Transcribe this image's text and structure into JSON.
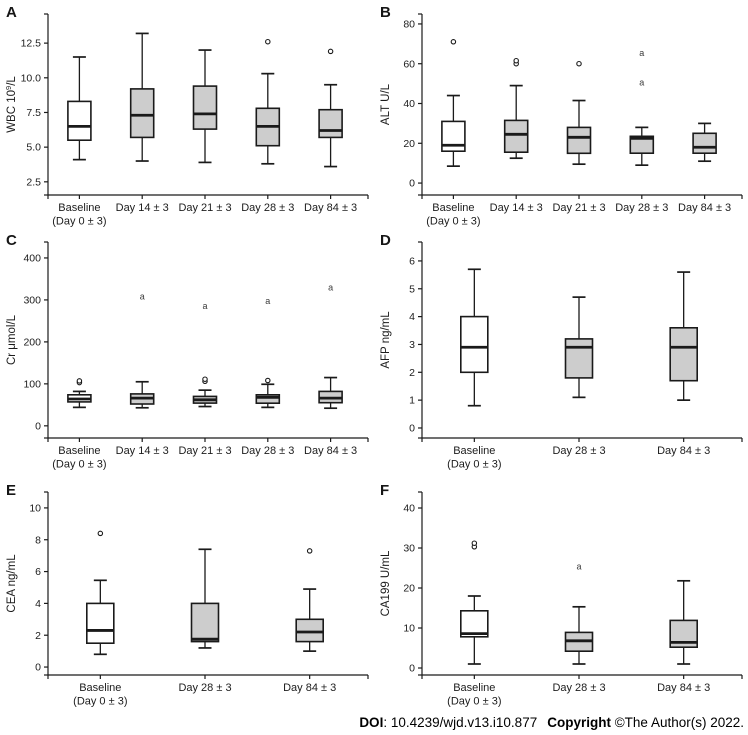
{
  "colors": {
    "line": "#1a1a1a",
    "text": "#1c1c1c",
    "box_fill_baseline": "#ffffff",
    "box_fill_followup": "#cdcdcd",
    "outlier_letter": "#3a3a3a",
    "background": "#ffffff"
  },
  "footer": {
    "doi_label": "DOI",
    "doi_separator": ": ",
    "doi_value": "10.4239/wjd.v13.i10.877",
    "copyright_label": "Copyright",
    "copyright_separator": " ",
    "copyright_value": "©The Author(s) 2022."
  },
  "chart_data": [
    {
      "panel": "A",
      "type": "box",
      "ylabel": "WBC 10⁹/L",
      "ylim": [
        1.55,
        14.6
      ],
      "yticks": [
        {
          "v": 2.5,
          "label": "2.5"
        },
        {
          "v": 5.0,
          "label": "5.0"
        },
        {
          "v": 7.5,
          "label": "7.5"
        },
        {
          "v": 10.0,
          "label": "10.0"
        },
        {
          "v": 12.5,
          "label": "12.5"
        }
      ],
      "categories": [
        [
          "Baseline",
          "(Day 0 ± 3)"
        ],
        [
          "Day 14 ± 3"
        ],
        [
          "Day 21 ± 3"
        ],
        [
          "Day 28 ± 3"
        ],
        [
          "Day 84 ± 3"
        ]
      ],
      "boxes": [
        {
          "whisker_low": 4.1,
          "q1": 5.5,
          "median": 6.5,
          "q3": 8.3,
          "whisker_high": 11.5,
          "fill": "white",
          "outliers": []
        },
        {
          "whisker_low": 4.0,
          "q1": 5.7,
          "median": 7.3,
          "q3": 9.2,
          "whisker_high": 13.2,
          "fill": "gray",
          "outliers": []
        },
        {
          "whisker_low": 3.9,
          "q1": 6.3,
          "median": 7.4,
          "q3": 9.4,
          "whisker_high": 12.0,
          "fill": "gray",
          "outliers": []
        },
        {
          "whisker_low": 3.8,
          "q1": 5.1,
          "median": 6.5,
          "q3": 7.8,
          "whisker_high": 10.3,
          "fill": "gray",
          "outliers": [
            {
              "value": 12.6,
              "marker": "circle"
            }
          ]
        },
        {
          "whisker_low": 3.6,
          "q1": 5.7,
          "median": 6.2,
          "q3": 7.7,
          "whisker_high": 9.5,
          "fill": "gray",
          "outliers": [
            {
              "value": 11.9,
              "marker": "circle"
            }
          ]
        }
      ]
    },
    {
      "panel": "B",
      "type": "box",
      "ylabel": "ALT U/L",
      "ylim": [
        -6,
        85
      ],
      "yticks": [
        {
          "v": 0,
          "label": "0"
        },
        {
          "v": 20,
          "label": "20"
        },
        {
          "v": 40,
          "label": "40"
        },
        {
          "v": 60,
          "label": "60"
        },
        {
          "v": 80,
          "label": "80"
        }
      ],
      "categories": [
        [
          "Baseline",
          "(Day 0 ± 3)"
        ],
        [
          "Day 14 ± 3"
        ],
        [
          "Day 21 ± 3"
        ],
        [
          "Day 28 ± 3"
        ],
        [
          "Day 84 ± 3"
        ]
      ],
      "boxes": [
        {
          "whisker_low": 8.5,
          "q1": 16,
          "median": 19,
          "q3": 31,
          "whisker_high": 44,
          "fill": "white",
          "outliers": [
            {
              "value": 71,
              "marker": "circle"
            }
          ]
        },
        {
          "whisker_low": 12.5,
          "q1": 15.5,
          "median": 24.5,
          "q3": 31.5,
          "whisker_high": 49,
          "fill": "gray",
          "outliers": [
            {
              "value": 60,
              "marker": "circle"
            },
            {
              "value": 61.5,
              "marker": "circle"
            }
          ]
        },
        {
          "whisker_low": 9.5,
          "q1": 15,
          "median": 23,
          "q3": 28,
          "whisker_high": 41.5,
          "fill": "gray",
          "outliers": [
            {
              "value": 60,
              "marker": "circle"
            }
          ]
        },
        {
          "whisker_low": 9,
          "q1": 15,
          "median": 22.5,
          "q3": 23.5,
          "whisker_high": 28,
          "fill": "gray",
          "outliers": [
            {
              "value": 50.5,
              "marker": "a"
            },
            {
              "value": 65.5,
              "marker": "a"
            }
          ]
        },
        {
          "whisker_low": 11,
          "q1": 15,
          "median": 18,
          "q3": 25,
          "whisker_high": 30,
          "fill": "gray",
          "outliers": []
        }
      ]
    },
    {
      "panel": "C",
      "type": "box",
      "ylabel": "Cr μmol/L",
      "ylim": [
        -29,
        438
      ],
      "yticks": [
        {
          "v": 0,
          "label": "0"
        },
        {
          "v": 100,
          "label": "100"
        },
        {
          "v": 200,
          "label": "200"
        },
        {
          "v": 300,
          "label": "300"
        },
        {
          "v": 400,
          "label": "400"
        }
      ],
      "categories": [
        [
          "Baseline",
          "(Day 0 ± 3)"
        ],
        [
          "Day 14 ± 3"
        ],
        [
          "Day 21 ± 3"
        ],
        [
          "Day 28 ± 3"
        ],
        [
          "Day 84 ± 3"
        ]
      ],
      "boxes": [
        {
          "whisker_low": 44,
          "q1": 57,
          "median": 64,
          "q3": 74,
          "whisker_high": 82,
          "fill": "white",
          "outliers": [
            {
              "value": 103,
              "marker": "circle"
            },
            {
              "value": 107,
              "marker": "circle"
            }
          ]
        },
        {
          "whisker_low": 43,
          "q1": 52,
          "median": 66,
          "q3": 76,
          "whisker_high": 105,
          "fill": "gray",
          "outliers": [
            {
              "value": 308,
              "marker": "a"
            }
          ]
        },
        {
          "whisker_low": 46,
          "q1": 54,
          "median": 62,
          "q3": 70,
          "whisker_high": 85,
          "fill": "gray",
          "outliers": [
            {
              "value": 106,
              "marker": "circle"
            },
            {
              "value": 111,
              "marker": "circle"
            },
            {
              "value": 285,
              "marker": "a"
            }
          ]
        },
        {
          "whisker_low": 44,
          "q1": 54,
          "median": 68,
          "q3": 74,
          "whisker_high": 99,
          "fill": "gray",
          "outliers": [
            {
              "value": 108,
              "marker": "circle"
            },
            {
              "value": 298,
              "marker": "a"
            }
          ]
        },
        {
          "whisker_low": 42,
          "q1": 55,
          "median": 66,
          "q3": 82,
          "whisker_high": 115,
          "fill": "gray",
          "outliers": [
            {
              "value": 330,
              "marker": "a"
            }
          ]
        }
      ]
    },
    {
      "panel": "D",
      "type": "box",
      "ylabel": "AFP ng/mL",
      "ylim": [
        -0.36,
        6.68
      ],
      "yticks": [
        {
          "v": 0,
          "label": "0"
        },
        {
          "v": 1,
          "label": "1"
        },
        {
          "v": 2,
          "label": "2"
        },
        {
          "v": 3,
          "label": "3"
        },
        {
          "v": 4,
          "label": "4"
        },
        {
          "v": 5,
          "label": "5"
        },
        {
          "v": 6,
          "label": "6"
        }
      ],
      "categories": [
        [
          "Baseline",
          "(Day 0 ± 3)"
        ],
        [
          "Day 28 ± 3"
        ],
        [
          "Day 84 ± 3"
        ]
      ],
      "boxes": [
        {
          "whisker_low": 0.8,
          "q1": 2.0,
          "median": 2.9,
          "q3": 4.0,
          "whisker_high": 5.7,
          "fill": "white",
          "outliers": []
        },
        {
          "whisker_low": 1.1,
          "q1": 1.8,
          "median": 2.9,
          "q3": 3.2,
          "whisker_high": 4.7,
          "fill": "gray",
          "outliers": []
        },
        {
          "whisker_low": 1.0,
          "q1": 1.7,
          "median": 2.9,
          "q3": 3.6,
          "whisker_high": 5.6,
          "fill": "gray",
          "outliers": []
        }
      ]
    },
    {
      "panel": "E",
      "type": "box",
      "ylabel": "CEA ng/mL",
      "ylim": [
        -0.5,
        11
      ],
      "yticks": [
        {
          "v": 0,
          "label": "0"
        },
        {
          "v": 2,
          "label": "2"
        },
        {
          "v": 4,
          "label": "4"
        },
        {
          "v": 6,
          "label": "6"
        },
        {
          "v": 8,
          "label": "8"
        },
        {
          "v": 10,
          "label": "10"
        }
      ],
      "categories": [
        [
          "Baseline",
          "(Day 0 ± 3)"
        ],
        [
          "Day 28 ± 3"
        ],
        [
          "Day 84 ± 3"
        ]
      ],
      "boxes": [
        {
          "whisker_low": 0.8,
          "q1": 1.5,
          "median": 2.3,
          "q3": 4.0,
          "whisker_high": 5.45,
          "fill": "white",
          "outliers": [
            {
              "value": 8.4,
              "marker": "circle"
            }
          ]
        },
        {
          "whisker_low": 1.2,
          "q1": 1.6,
          "median": 1.75,
          "q3": 4.0,
          "whisker_high": 7.4,
          "fill": "gray",
          "outliers": []
        },
        {
          "whisker_low": 1.0,
          "q1": 1.6,
          "median": 2.2,
          "q3": 3.0,
          "whisker_high": 4.9,
          "fill": "gray",
          "outliers": [
            {
              "value": 7.3,
              "marker": "circle"
            }
          ]
        }
      ]
    },
    {
      "panel": "F",
      "type": "box",
      "ylabel": "CA199 U/mL",
      "ylim": [
        -1.75,
        44
      ],
      "yticks": [
        {
          "v": 0,
          "label": "0"
        },
        {
          "v": 10,
          "label": "10"
        },
        {
          "v": 20,
          "label": "20"
        },
        {
          "v": 30,
          "label": "30"
        },
        {
          "v": 40,
          "label": "40"
        }
      ],
      "categories": [
        [
          "Baseline",
          "(Day 0 ± 3)"
        ],
        [
          "Day 28 ± 3"
        ],
        [
          "Day 84 ± 3"
        ]
      ],
      "boxes": [
        {
          "whisker_low": 1,
          "q1": 7.8,
          "median": 8.6,
          "q3": 14.3,
          "whisker_high": 18,
          "fill": "white",
          "outliers": [
            {
              "value": 30.3,
              "marker": "circle"
            },
            {
              "value": 31.2,
              "marker": "circle"
            }
          ]
        },
        {
          "whisker_low": 1,
          "q1": 4.2,
          "median": 6.8,
          "q3": 8.9,
          "whisker_high": 15.3,
          "fill": "gray",
          "outliers": [
            {
              "value": 25.4,
              "marker": "a"
            }
          ]
        },
        {
          "whisker_low": 1,
          "q1": 5.2,
          "median": 6.4,
          "q3": 11.9,
          "whisker_high": 21.8,
          "fill": "gray",
          "outliers": []
        }
      ]
    }
  ]
}
